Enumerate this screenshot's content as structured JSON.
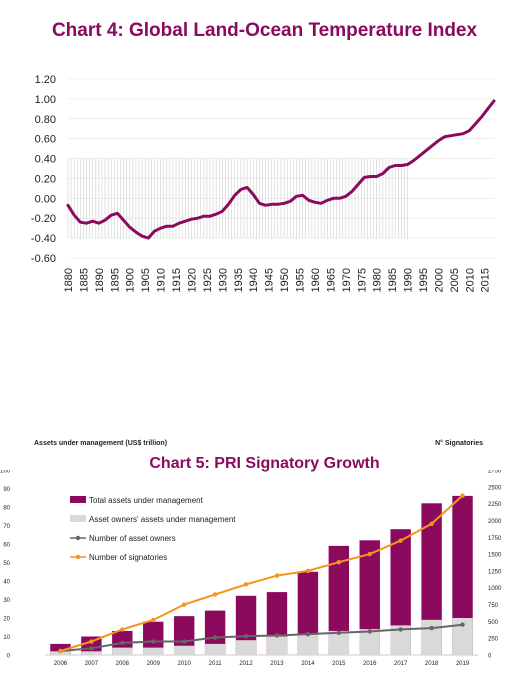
{
  "chart_data": [
    {
      "type": "line",
      "title": "Chart 4: Global Land-Ocean Temperature Index",
      "xlabel": "",
      "ylabel": "",
      "ylim": [
        -0.6,
        1.2
      ],
      "y_ticks": [
        "1.20",
        "1.00",
        "0.80",
        "0.60",
        "0.40",
        "0.20",
        "0.00",
        "-0.20",
        "-0.40",
        "-0.60"
      ],
      "x_ticks": [
        "1880",
        "1885",
        "1890",
        "1895",
        "1900",
        "1905",
        "1910",
        "1915",
        "1920",
        "1925",
        "1930",
        "1935",
        "1940",
        "1945",
        "1950",
        "1955",
        "1960",
        "1965",
        "1970",
        "1975",
        "1980",
        "1985",
        "1990",
        "1995",
        "2000",
        "2005",
        "2010",
        "2015"
      ],
      "grid": "vertical lines from 1880 to 1990 between -0.40 and 0.40",
      "color": "#8b0a5e",
      "series": [
        {
          "x": [
            1880,
            1882,
            1884,
            1886,
            1888,
            1890,
            1892,
            1894,
            1896,
            1898,
            1900,
            1902,
            1904,
            1906,
            1908,
            1910,
            1912,
            1914,
            1916,
            1918,
            1920,
            1922,
            1924,
            1926,
            1928,
            1930,
            1932,
            1934,
            1936,
            1938,
            1940,
            1942,
            1944,
            1946,
            1948,
            1950,
            1952,
            1954,
            1956,
            1958,
            1960,
            1962,
            1964,
            1966,
            1968,
            1970,
            1972,
            1974,
            1976,
            1978,
            1980,
            1982,
            1984,
            1986,
            1988,
            1990,
            1992,
            1994,
            1996,
            1998,
            2000,
            2002,
            2004,
            2006,
            2008,
            2010,
            2012,
            2014,
            2016,
            2018
          ],
          "y": [
            -0.07,
            -0.17,
            -0.24,
            -0.25,
            -0.23,
            -0.25,
            -0.22,
            -0.17,
            -0.15,
            -0.22,
            -0.29,
            -0.34,
            -0.38,
            -0.4,
            -0.33,
            -0.3,
            -0.28,
            -0.28,
            -0.25,
            -0.23,
            -0.21,
            -0.2,
            -0.18,
            -0.18,
            -0.16,
            -0.13,
            -0.06,
            0.03,
            0.09,
            0.11,
            0.04,
            -0.05,
            -0.07,
            -0.06,
            -0.06,
            -0.05,
            -0.03,
            0.02,
            0.03,
            -0.02,
            -0.04,
            -0.05,
            -0.02,
            0.0,
            0.0,
            0.02,
            0.07,
            0.14,
            0.21,
            0.22,
            0.22,
            0.25,
            0.31,
            0.33,
            0.33,
            0.34,
            0.38,
            0.43,
            0.48,
            0.53,
            0.58,
            0.62,
            0.63,
            0.64,
            0.65,
            0.68,
            0.75,
            0.82,
            0.9,
            0.98
          ]
        }
      ]
    },
    {
      "type": "bar",
      "title": "Chart 5: PRI Signatory Growth",
      "left_axis_label": "Assets under management (US$ trillion)",
      "right_axis_label": "N° Signatories",
      "xlabel": "",
      "ylim": [
        0,
        100
      ],
      "y2lim": [
        0,
        2750
      ],
      "y_ticks": [
        "100",
        "90",
        "80",
        "70",
        "60",
        "50",
        "40",
        "30",
        "20",
        "10",
        "0"
      ],
      "y2_ticks": [
        "2750",
        "2500",
        "2250",
        "2000",
        "1750",
        "1500",
        "1250",
        "1000",
        "750",
        "500",
        "250",
        "0"
      ],
      "categories": [
        "2006",
        "2007",
        "2008",
        "2009",
        "2010",
        "2011",
        "2012",
        "2013",
        "2014",
        "2015",
        "2016",
        "2017",
        "2018",
        "2019"
      ],
      "legend_position": "upper-left",
      "series": [
        {
          "name": "Total assets under management",
          "kind": "bar",
          "color": "#8b0a5e",
          "values": [
            6,
            10,
            13,
            18,
            21,
            24,
            32,
            34,
            45,
            59,
            62,
            68,
            82,
            86
          ]
        },
        {
          "name": "Asset owners' assets under management",
          "kind": "bar",
          "color": "#d9d9d9",
          "values": [
            2,
            2,
            4,
            4,
            5,
            6,
            8,
            10,
            11,
            13,
            14,
            16,
            19,
            20
          ]
        },
        {
          "name": "Number of asset owners",
          "kind": "line",
          "axis": "right",
          "color": "#666666",
          "values": [
            60,
            100,
            180,
            200,
            200,
            260,
            280,
            290,
            310,
            330,
            350,
            380,
            400,
            450
          ]
        },
        {
          "name": "Number of signatories",
          "kind": "line",
          "axis": "right",
          "color": "#f7941d",
          "values": [
            60,
            200,
            380,
            520,
            750,
            900,
            1050,
            1180,
            1250,
            1380,
            1500,
            1700,
            1950,
            2370
          ]
        }
      ]
    }
  ]
}
